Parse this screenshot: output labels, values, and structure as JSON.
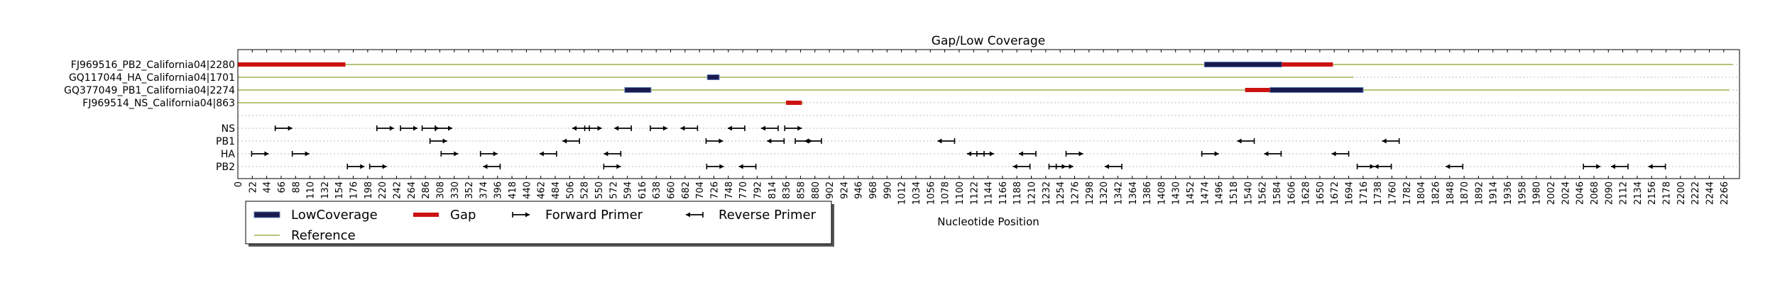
{
  "chart_data": {
    "type": "gantt",
    "title": "Gap/Low Coverage",
    "xlabel": "Nucleotide Position",
    "xlim": [
      0,
      2290
    ],
    "x_ticks": [
      0,
      22,
      44,
      66,
      88,
      110,
      132,
      154,
      176,
      198,
      220,
      242,
      264,
      286,
      308,
      330,
      352,
      374,
      396,
      418,
      440,
      462,
      484,
      506,
      528,
      550,
      572,
      594,
      616,
      638,
      660,
      682,
      704,
      726,
      748,
      770,
      792,
      814,
      836,
      858,
      880,
      902,
      924,
      946,
      968,
      990,
      1012,
      1034,
      1056,
      1078,
      1100,
      1122,
      1144,
      1166,
      1188,
      1210,
      1232,
      1254,
      1276,
      1298,
      1320,
      1342,
      1364,
      1386,
      1408,
      1430,
      1452,
      1474,
      1496,
      1518,
      1540,
      1562,
      1584,
      1606,
      1628,
      1650,
      1672,
      1694,
      1716,
      1738,
      1760,
      1782,
      1804,
      1826,
      1848,
      1870,
      1892,
      1914,
      1936,
      1958,
      1980,
      2002,
      2024,
      2046,
      2068,
      2090,
      2112,
      2134,
      2156,
      2178,
      2200,
      2222,
      2244,
      2266
    ],
    "rows": [
      "FJ969516_PB2_California04|2280",
      "GQ117044_HA_California04|1701",
      "GQ377049_PB1_California04|2274",
      "FJ969514_NS_California04|863",
      "",
      "NS",
      "PB1",
      "HA",
      "PB2"
    ],
    "references": [
      {
        "row": 0,
        "length": 2280
      },
      {
        "row": 1,
        "length": 1701
      },
      {
        "row": 2,
        "length": 2274
      },
      {
        "row": 3,
        "length": 863
      }
    ],
    "low_coverage": [
      {
        "row": 0,
        "start": 1474,
        "end": 1592
      },
      {
        "row": 1,
        "start": 716,
        "end": 734
      },
      {
        "row": 2,
        "start": 590,
        "end": 630
      },
      {
        "row": 2,
        "start": 1574,
        "end": 1716
      }
    ],
    "gaps": [
      {
        "row": 0,
        "start": 0,
        "end": 164
      },
      {
        "row": 0,
        "start": 1592,
        "end": 1670
      },
      {
        "row": 2,
        "start": 1536,
        "end": 1574
      },
      {
        "row": 3,
        "start": 836,
        "end": 860
      }
    ],
    "forward_primers": [
      {
        "row": 5,
        "x": 70
      },
      {
        "row": 5,
        "x": 225
      },
      {
        "row": 5,
        "x": 261
      },
      {
        "row": 5,
        "x": 294
      },
      {
        "row": 5,
        "x": 314
      },
      {
        "row": 5,
        "x": 542
      },
      {
        "row": 5,
        "x": 642
      },
      {
        "row": 5,
        "x": 847
      },
      {
        "row": 6,
        "x": 306
      },
      {
        "row": 6,
        "x": 727
      },
      {
        "row": 6,
        "x": 863
      },
      {
        "row": 7,
        "x": 34
      },
      {
        "row": 7,
        "x": 96
      },
      {
        "row": 7,
        "x": 323
      },
      {
        "row": 7,
        "x": 383
      },
      {
        "row": 7,
        "x": 1140
      },
      {
        "row": 7,
        "x": 1276
      },
      {
        "row": 7,
        "x": 1483
      },
      {
        "row": 8,
        "x": 180
      },
      {
        "row": 8,
        "x": 214
      },
      {
        "row": 8,
        "x": 571
      },
      {
        "row": 8,
        "x": 728
      },
      {
        "row": 8,
        "x": 1250
      },
      {
        "row": 8,
        "x": 1261
      },
      {
        "row": 8,
        "x": 1720
      },
      {
        "row": 8,
        "x": 2065
      }
    ],
    "reverse_primers": [
      {
        "row": 5,
        "x": 523
      },
      {
        "row": 5,
        "x": 587
      },
      {
        "row": 5,
        "x": 688
      },
      {
        "row": 5,
        "x": 760
      },
      {
        "row": 5,
        "x": 811
      },
      {
        "row": 6,
        "x": 508
      },
      {
        "row": 6,
        "x": 820
      },
      {
        "row": 6,
        "x": 877
      },
      {
        "row": 6,
        "x": 1080
      },
      {
        "row": 6,
        "x": 1537
      },
      {
        "row": 6,
        "x": 1758
      },
      {
        "row": 7,
        "x": 473
      },
      {
        "row": 7,
        "x": 571
      },
      {
        "row": 7,
        "x": 1125
      },
      {
        "row": 7,
        "x": 1204
      },
      {
        "row": 7,
        "x": 1578
      },
      {
        "row": 7,
        "x": 1681
      },
      {
        "row": 8,
        "x": 387
      },
      {
        "row": 8,
        "x": 777
      },
      {
        "row": 8,
        "x": 1195
      },
      {
        "row": 8,
        "x": 1335
      },
      {
        "row": 8,
        "x": 1746
      },
      {
        "row": 8,
        "x": 1855
      },
      {
        "row": 8,
        "x": 2107
      },
      {
        "row": 8,
        "x": 2164
      }
    ],
    "legend": [
      {
        "label": "LowCoverage",
        "kind": "lowcov"
      },
      {
        "label": "Gap",
        "kind": "gap"
      },
      {
        "label": "Forward Primer",
        "kind": "fwd"
      },
      {
        "label": "Reverse Primer",
        "kind": "rev"
      },
      {
        "label": "Reference",
        "kind": "ref"
      }
    ],
    "legend_position": "bottom-left",
    "grid": "horizontal dotted",
    "colors": {
      "low_coverage": "#1a1a4e",
      "low_coverage_edge": "#5a78b4",
      "gap": "#cc1111",
      "reference": "#9ab34a",
      "primer": "#000000",
      "grid": "#bbbbbb"
    }
  }
}
